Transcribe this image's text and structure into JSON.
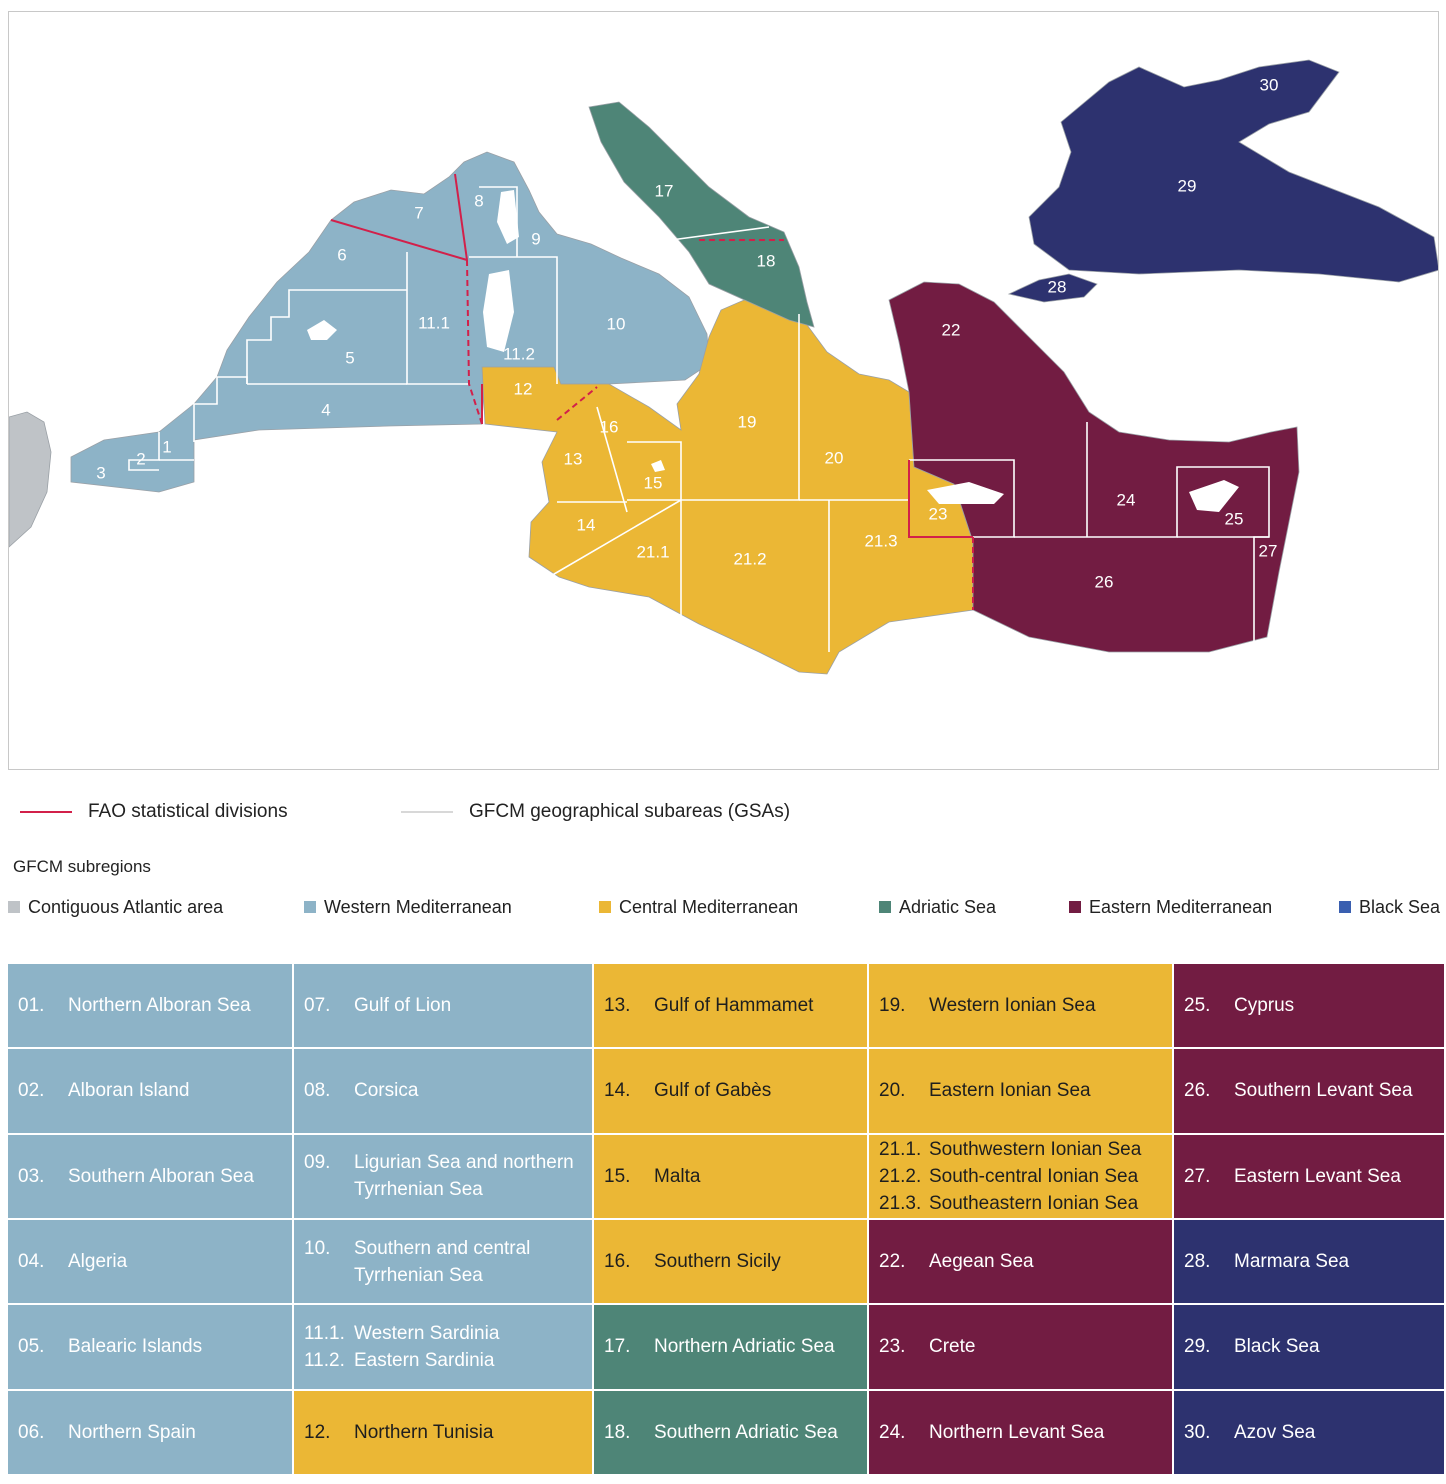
{
  "colors": {
    "atlantic": "#bfc3c7",
    "western": "#8db3c7",
    "central": "#ebb735",
    "adriatic": "#4e8577",
    "eastern": "#721c42",
    "black": "#2d326f",
    "black_legend": "#3a5fb0",
    "fao_line": "#d2204a",
    "gsa_line": "#ffffff",
    "gsa_legend_line": "#d8d8d8"
  },
  "map_labels": [
    "1",
    "2",
    "3",
    "4",
    "5",
    "6",
    "7",
    "8",
    "9",
    "10",
    "11.1",
    "11.2",
    "12",
    "13",
    "14",
    "15",
    "16",
    "17",
    "18",
    "19",
    "20",
    "21.1",
    "21.2",
    "21.3",
    "22",
    "23",
    "24",
    "25",
    "26",
    "27",
    "28",
    "29",
    "30"
  ],
  "line_legend": {
    "fao": "FAO statistical divisions",
    "gsa": "GFCM geographical subareas (GSAs)"
  },
  "subregions": {
    "title": "GFCM subregions",
    "items": [
      {
        "label": "Contiguous Atlantic area",
        "color": "#bfc3c7"
      },
      {
        "label": "Western Mediterranean",
        "color": "#8db3c7"
      },
      {
        "label": "Central Mediterranean",
        "color": "#ebb735"
      },
      {
        "label": "Adriatic Sea",
        "color": "#4e8577"
      },
      {
        "label": "Eastern Mediterranean",
        "color": "#721c42"
      },
      {
        "label": "Black Sea",
        "color": "#3a5fb0"
      }
    ]
  },
  "table": {
    "columns": [
      [
        {
          "region": "western",
          "rows": [
            [
              "01.",
              "Northern Alboran Sea"
            ]
          ]
        },
        {
          "region": "western",
          "rows": [
            [
              "02.",
              "Alboran Island"
            ]
          ]
        },
        {
          "region": "western",
          "rows": [
            [
              "03.",
              "Southern Alboran Sea"
            ]
          ]
        },
        {
          "region": "western",
          "rows": [
            [
              "04.",
              "Algeria"
            ]
          ]
        },
        {
          "region": "western",
          "rows": [
            [
              "05.",
              "Balearic Islands"
            ]
          ]
        },
        {
          "region": "western",
          "rows": [
            [
              "06.",
              "Northern Spain"
            ]
          ]
        }
      ],
      [
        {
          "region": "western",
          "rows": [
            [
              "07.",
              "Gulf of Lion"
            ]
          ]
        },
        {
          "region": "western",
          "rows": [
            [
              "08.",
              "Corsica"
            ]
          ]
        },
        {
          "region": "western",
          "rows": [
            [
              "09.",
              "Ligurian Sea and northern Tyrrhenian Sea"
            ]
          ]
        },
        {
          "region": "western",
          "rows": [
            [
              "10.",
              "Southern and central Tyrrhenian Sea"
            ]
          ]
        },
        {
          "region": "western",
          "rows": [
            [
              "11.1.",
              "Western Sardinia"
            ],
            [
              "11.2.",
              "Eastern Sardinia"
            ]
          ]
        },
        {
          "region": "central",
          "rows": [
            [
              "12.",
              "Northern Tunisia"
            ]
          ]
        }
      ],
      [
        {
          "region": "central",
          "rows": [
            [
              "13.",
              "Gulf of Hammamet"
            ]
          ]
        },
        {
          "region": "central",
          "rows": [
            [
              "14.",
              "Gulf of Gabès"
            ]
          ]
        },
        {
          "region": "central",
          "rows": [
            [
              "15.",
              "Malta"
            ]
          ]
        },
        {
          "region": "central",
          "rows": [
            [
              "16.",
              "Southern Sicily"
            ]
          ]
        },
        {
          "region": "adriatic",
          "rows": [
            [
              "17.",
              "Northern Adriatic Sea"
            ]
          ]
        },
        {
          "region": "adriatic",
          "rows": [
            [
              "18.",
              "Southern Adriatic Sea"
            ]
          ]
        }
      ],
      [
        {
          "region": "central",
          "rows": [
            [
              "19.",
              "Western Ionian Sea"
            ]
          ]
        },
        {
          "region": "central",
          "rows": [
            [
              "20.",
              "Eastern Ionian Sea"
            ]
          ]
        },
        {
          "region": "central",
          "rows": [
            [
              "21.1.",
              "Southwestern Ionian Sea"
            ],
            [
              "21.2.",
              "South-central Ionian Sea"
            ],
            [
              "21.3.",
              "Southeastern Ionian Sea"
            ]
          ]
        },
        {
          "region": "eastern",
          "rows": [
            [
              "22.",
              "Aegean Sea"
            ]
          ]
        },
        {
          "region": "eastern",
          "rows": [
            [
              "23.",
              "Crete"
            ]
          ]
        },
        {
          "region": "eastern",
          "rows": [
            [
              "24.",
              "Northern Levant Sea"
            ]
          ]
        }
      ],
      [
        {
          "region": "eastern",
          "rows": [
            [
              "25.",
              "Cyprus"
            ]
          ]
        },
        {
          "region": "eastern",
          "rows": [
            [
              "26.",
              "Southern Levant Sea"
            ]
          ]
        },
        {
          "region": "eastern",
          "rows": [
            [
              "27.",
              "Eastern Levant Sea"
            ]
          ]
        },
        {
          "region": "black",
          "rows": [
            [
              "28.",
              "Marmara Sea"
            ]
          ]
        },
        {
          "region": "black",
          "rows": [
            [
              "29.",
              "Black Sea"
            ]
          ]
        },
        {
          "region": "black",
          "rows": [
            [
              "30.",
              "Azov Sea"
            ]
          ]
        }
      ]
    ]
  }
}
